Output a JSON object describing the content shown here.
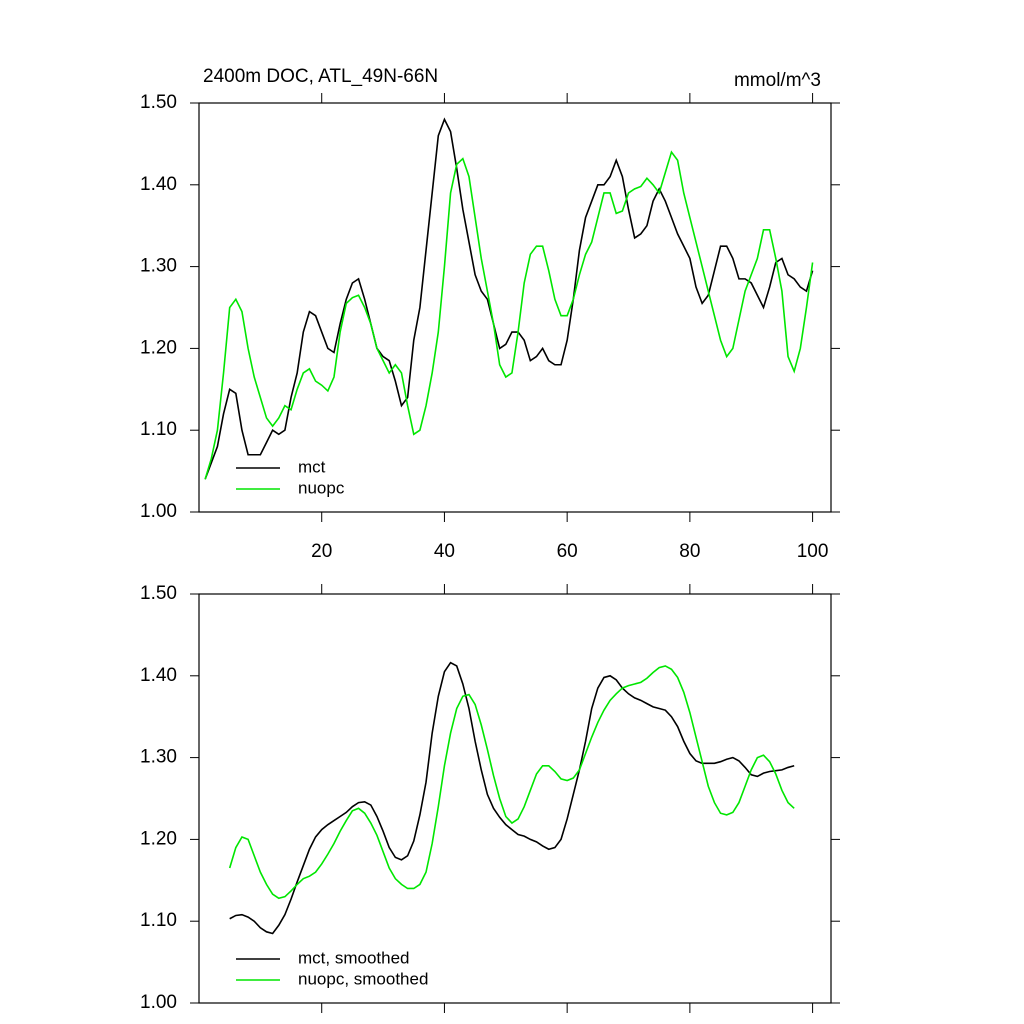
{
  "chart_data": [
    {
      "type": "line",
      "title": "2400m DOC, ATL_49N-66N",
      "units": "mmol/m^3",
      "x": [
        1,
        2,
        3,
        4,
        5,
        6,
        7,
        8,
        9,
        10,
        11,
        12,
        13,
        14,
        15,
        16,
        17,
        18,
        19,
        20,
        21,
        22,
        23,
        24,
        25,
        26,
        27,
        28,
        29,
        30,
        31,
        32,
        33,
        34,
        35,
        36,
        37,
        38,
        39,
        40,
        41,
        42,
        43,
        44,
        45,
        46,
        47,
        48,
        49,
        50,
        51,
        52,
        53,
        54,
        55,
        56,
        57,
        58,
        59,
        60,
        61,
        62,
        63,
        64,
        65,
        66,
        67,
        68,
        69,
        70,
        71,
        72,
        73,
        74,
        75,
        76,
        77,
        78,
        79,
        80,
        81,
        82,
        83,
        84,
        85,
        86,
        87,
        88,
        89,
        90,
        91,
        92,
        93,
        94,
        95,
        96,
        97,
        98,
        99,
        100
      ],
      "series": [
        {
          "name": "mct",
          "color": "#000000",
          "values": [
            1.04,
            1.06,
            1.08,
            1.12,
            1.15,
            1.145,
            1.1,
            1.07,
            1.07,
            1.07,
            1.085,
            1.1,
            1.095,
            1.1,
            1.14,
            1.17,
            1.22,
            1.245,
            1.24,
            1.22,
            1.2,
            1.195,
            1.23,
            1.26,
            1.28,
            1.285,
            1.26,
            1.23,
            1.2,
            1.19,
            1.185,
            1.16,
            1.13,
            1.14,
            1.21,
            1.25,
            1.32,
            1.39,
            1.46,
            1.48,
            1.465,
            1.42,
            1.37,
            1.33,
            1.29,
            1.27,
            1.26,
            1.23,
            1.2,
            1.205,
            1.22,
            1.22,
            1.21,
            1.185,
            1.19,
            1.2,
            1.185,
            1.18,
            1.18,
            1.21,
            1.26,
            1.32,
            1.36,
            1.38,
            1.4,
            1.4,
            1.41,
            1.43,
            1.41,
            1.37,
            1.335,
            1.34,
            1.35,
            1.38,
            1.395,
            1.38,
            1.36,
            1.34,
            1.325,
            1.31,
            1.275,
            1.255,
            1.265,
            1.295,
            1.325,
            1.325,
            1.31,
            1.285,
            1.285,
            1.28,
            1.265,
            1.25,
            1.275,
            1.305,
            1.31,
            1.29,
            1.285,
            1.275,
            1.27,
            1.295
          ]
        },
        {
          "name": "nuopc",
          "color": "#00e600",
          "values": [
            1.04,
            1.065,
            1.1,
            1.17,
            1.25,
            1.26,
            1.245,
            1.2,
            1.165,
            1.14,
            1.115,
            1.105,
            1.115,
            1.13,
            1.125,
            1.15,
            1.17,
            1.175,
            1.16,
            1.155,
            1.148,
            1.165,
            1.22,
            1.255,
            1.262,
            1.265,
            1.25,
            1.23,
            1.2,
            1.185,
            1.17,
            1.18,
            1.17,
            1.13,
            1.095,
            1.1,
            1.13,
            1.17,
            1.22,
            1.3,
            1.39,
            1.425,
            1.432,
            1.41,
            1.36,
            1.31,
            1.27,
            1.23,
            1.18,
            1.165,
            1.17,
            1.22,
            1.28,
            1.315,
            1.325,
            1.325,
            1.295,
            1.26,
            1.24,
            1.24,
            1.26,
            1.29,
            1.315,
            1.33,
            1.36,
            1.39,
            1.39,
            1.365,
            1.368,
            1.39,
            1.395,
            1.398,
            1.408,
            1.4,
            1.39,
            1.415,
            1.44,
            1.43,
            1.39,
            1.36,
            1.33,
            1.3,
            1.27,
            1.24,
            1.21,
            1.19,
            1.2,
            1.235,
            1.27,
            1.29,
            1.31,
            1.345,
            1.345,
            1.31,
            1.27,
            1.19,
            1.172,
            1.2,
            1.25,
            1.305
          ]
        }
      ],
      "xlim": [
        0,
        103
      ],
      "xticks": [
        20,
        40,
        60,
        80,
        100
      ],
      "show_xtick_labels": true,
      "ylim": [
        1.0,
        1.5
      ],
      "yticks": [
        {
          "value": 1.0,
          "label": "1.00"
        },
        {
          "value": 1.1,
          "label": "1.10"
        },
        {
          "value": 1.2,
          "label": "1.20"
        },
        {
          "value": 1.3,
          "label": "1.30"
        },
        {
          "value": 1.4,
          "label": "1.40"
        },
        {
          "value": 1.5,
          "label": "1.50"
        }
      ],
      "legend": "lower left"
    },
    {
      "type": "line",
      "x": [
        5,
        6,
        7,
        8,
        9,
        10,
        11,
        12,
        13,
        14,
        15,
        16,
        17,
        18,
        19,
        20,
        21,
        22,
        23,
        24,
        25,
        26,
        27,
        28,
        29,
        30,
        31,
        32,
        33,
        34,
        35,
        36,
        37,
        38,
        39,
        40,
        41,
        42,
        43,
        44,
        45,
        46,
        47,
        48,
        49,
        50,
        51,
        52,
        53,
        54,
        55,
        56,
        57,
        58,
        59,
        60,
        61,
        62,
        63,
        64,
        65,
        66,
        67,
        68,
        69,
        70,
        71,
        72,
        73,
        74,
        75,
        76,
        77,
        78,
        79,
        80,
        81,
        82,
        83,
        84,
        85,
        86,
        87,
        88,
        89,
        90,
        91,
        92,
        93,
        94,
        95,
        96,
        97
      ],
      "series": [
        {
          "name": "mct, smoothed",
          "color": "#000000",
          "values": [
            1.103,
            1.107,
            1.108,
            1.105,
            1.1,
            1.092,
            1.087,
            1.085,
            1.095,
            1.108,
            1.127,
            1.148,
            1.168,
            1.188,
            1.203,
            1.212,
            1.218,
            1.223,
            1.228,
            1.233,
            1.24,
            1.245,
            1.246,
            1.242,
            1.228,
            1.21,
            1.19,
            1.178,
            1.175,
            1.18,
            1.198,
            1.23,
            1.27,
            1.33,
            1.375,
            1.405,
            1.416,
            1.412,
            1.39,
            1.36,
            1.32,
            1.285,
            1.255,
            1.238,
            1.227,
            1.218,
            1.212,
            1.206,
            1.204,
            1.2,
            1.197,
            1.192,
            1.188,
            1.19,
            1.2,
            1.225,
            1.255,
            1.285,
            1.32,
            1.36,
            1.385,
            1.398,
            1.4,
            1.395,
            1.385,
            1.378,
            1.373,
            1.37,
            1.366,
            1.362,
            1.36,
            1.358,
            1.35,
            1.338,
            1.32,
            1.305,
            1.296,
            1.293,
            1.293,
            1.293,
            1.295,
            1.298,
            1.3,
            1.296,
            1.288,
            1.279,
            1.277,
            1.281,
            1.283,
            1.284,
            1.285,
            1.288,
            1.29
          ]
        },
        {
          "name": "nuopc, smoothed",
          "color": "#00e600",
          "values": [
            1.165,
            1.19,
            1.203,
            1.2,
            1.18,
            1.16,
            1.145,
            1.133,
            1.128,
            1.13,
            1.137,
            1.145,
            1.152,
            1.155,
            1.16,
            1.17,
            1.182,
            1.195,
            1.21,
            1.223,
            1.235,
            1.238,
            1.232,
            1.22,
            1.205,
            1.185,
            1.165,
            1.152,
            1.145,
            1.14,
            1.14,
            1.145,
            1.16,
            1.195,
            1.24,
            1.29,
            1.33,
            1.36,
            1.375,
            1.377,
            1.365,
            1.34,
            1.31,
            1.278,
            1.25,
            1.228,
            1.22,
            1.225,
            1.24,
            1.26,
            1.28,
            1.29,
            1.29,
            1.283,
            1.274,
            1.272,
            1.275,
            1.285,
            1.305,
            1.325,
            1.343,
            1.358,
            1.37,
            1.378,
            1.385,
            1.388,
            1.39,
            1.392,
            1.397,
            1.404,
            1.41,
            1.412,
            1.408,
            1.398,
            1.38,
            1.355,
            1.325,
            1.295,
            1.265,
            1.245,
            1.232,
            1.23,
            1.233,
            1.245,
            1.265,
            1.285,
            1.3,
            1.303,
            1.295,
            1.28,
            1.26,
            1.245,
            1.238
          ]
        }
      ],
      "xlim": [
        0,
        103
      ],
      "xticks": [
        20,
        40,
        60,
        80,
        100
      ],
      "show_xtick_labels": false,
      "ylim": [
        1.0,
        1.5
      ],
      "yticks": [
        {
          "value": 1.0,
          "label": "1.00"
        },
        {
          "value": 1.1,
          "label": "1.10"
        },
        {
          "value": 1.2,
          "label": "1.20"
        },
        {
          "value": 1.3,
          "label": "1.30"
        },
        {
          "value": 1.4,
          "label": "1.40"
        },
        {
          "value": 1.5,
          "label": "1.50"
        }
      ],
      "legend": "lower left"
    }
  ]
}
